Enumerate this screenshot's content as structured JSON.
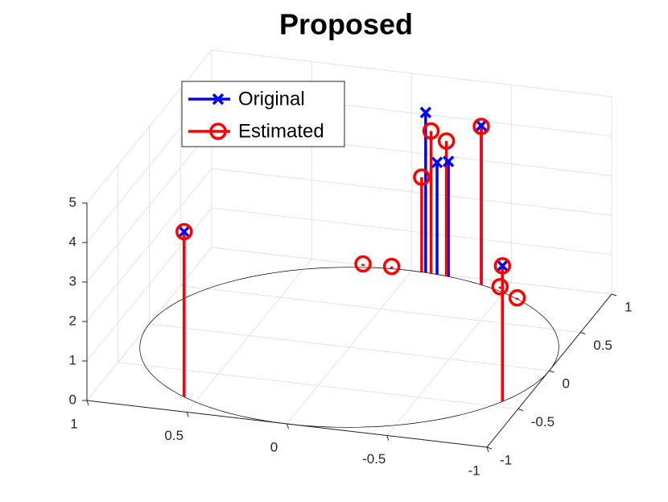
{
  "chart_data": {
    "type": "stem3",
    "title": "Proposed",
    "series": [
      {
        "name": "Original",
        "color": "#0000ff",
        "marker": "x",
        "x": [
          0.57,
          -0.9,
          -0.07,
          -0.13,
          -0.19,
          -0.37
        ],
        "y": [
          -0.82,
          -0.43,
          1.0,
          0.99,
          0.98,
          0.93
        ],
        "z": [
          4.18,
          3.43,
          4.05,
          2.84,
          2.92,
          4.03
        ]
      },
      {
        "name": "Estimated",
        "color": "#ff0000",
        "marker": "o",
        "x": [
          0.57,
          -0.9,
          -0.05,
          -0.1,
          -0.18,
          -0.37,
          0.24,
          0.1,
          -0.47,
          -0.59
        ],
        "y": [
          -0.82,
          -0.43,
          1.0,
          0.99,
          0.98,
          0.93,
          0.99,
          1.0,
          0.91,
          0.8
        ],
        "z": [
          4.18,
          3.43,
          2.4,
          3.62,
          3.43,
          4.01,
          0.05,
          0.05,
          0.05,
          0.05
        ]
      }
    ],
    "xlim": [
      -1,
      1
    ],
    "ylim": [
      -1,
      1
    ],
    "zlim": [
      0,
      5
    ],
    "xticks": [
      -1,
      -0.5,
      0,
      0.5,
      1
    ],
    "yticks": [
      -1,
      -0.5,
      0,
      0.5,
      1
    ],
    "zticks": [
      0,
      1,
      2,
      3,
      4,
      5
    ],
    "grid": true,
    "legend": "upper-left"
  }
}
